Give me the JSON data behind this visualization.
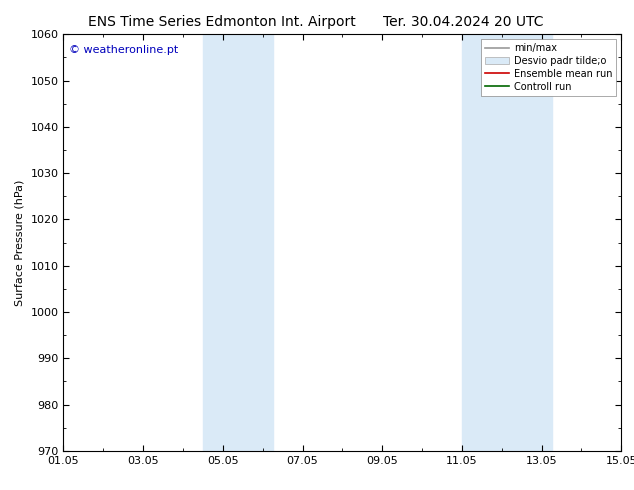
{
  "title_left": "ENS Time Series Edmonton Int. Airport",
  "title_right": "Ter. 30.04.2024 20 UTC",
  "ylabel": "Surface Pressure (hPa)",
  "ylim": [
    970,
    1060
  ],
  "yticks": [
    970,
    980,
    990,
    1000,
    1010,
    1020,
    1030,
    1040,
    1050,
    1060
  ],
  "x_start_days": 0,
  "x_end_days": 14,
  "xtick_labels": [
    "01.05",
    "03.05",
    "05.05",
    "07.05",
    "09.05",
    "11.05",
    "13.05",
    "15.05"
  ],
  "xtick_positions_days": [
    0,
    2,
    4,
    6,
    8,
    10,
    12,
    14
  ],
  "shaded_regions_days": [
    {
      "x_start": 3.5,
      "x_end": 5.25,
      "color": "#daeaf7"
    },
    {
      "x_start": 10.0,
      "x_end": 12.25,
      "color": "#daeaf7"
    }
  ],
  "legend_items": [
    {
      "label": "min/max",
      "type": "hline",
      "color": "#999999"
    },
    {
      "label": "Desvio padr tilde;o",
      "type": "box",
      "facecolor": "#daeaf7",
      "edgecolor": "#aaaaaa"
    },
    {
      "label": "Ensemble mean run",
      "type": "line",
      "color": "#cc0000"
    },
    {
      "label": "Controll run",
      "type": "line",
      "color": "#006600"
    }
  ],
  "copyright_text": "© weatheronline.pt",
  "copyright_color": "#0000bb",
  "background_color": "#ffffff",
  "plot_bg_color": "#ffffff",
  "title_fontsize": 10,
  "label_fontsize": 8,
  "tick_fontsize": 8,
  "legend_fontsize": 7
}
